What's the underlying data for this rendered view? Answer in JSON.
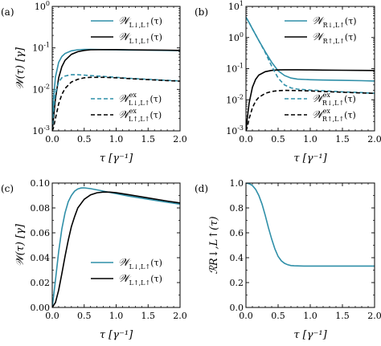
{
  "colors": {
    "teal": "#2f8fa8",
    "black": "#000000"
  },
  "chart_data": [
    {
      "panel": "(a)",
      "type": "line",
      "xlabel": "τ [γ⁻¹]",
      "ylabel": "𝒲(τ) [γ]",
      "xlim": [
        0,
        2.0
      ],
      "ylim": [
        0.001,
        1.0
      ],
      "yscale": "log",
      "xticks": [
        "0.0",
        "0.5",
        "1.0",
        "1.5",
        "2.0"
      ],
      "yticks": [
        "10⁻³",
        "10⁻²",
        "10⁻¹",
        "10⁰"
      ],
      "legend_top": "top-right",
      "legend_bottom": "bottom-right",
      "series": [
        {
          "name": "𝒲L↓,L↑(τ)",
          "color": "#2f8fa8",
          "dash": "solid",
          "legend": "top",
          "x": [
            0,
            0.02,
            0.05,
            0.1,
            0.15,
            0.2,
            0.3,
            0.4,
            0.5,
            0.6,
            0.8,
            1.0,
            1.2,
            1.5,
            1.8,
            2.0
          ],
          "y": [
            0.001,
            0.006,
            0.02,
            0.045,
            0.062,
            0.073,
            0.085,
            0.09,
            0.092,
            0.092,
            0.091,
            0.09,
            0.089,
            0.088,
            0.087,
            0.086
          ]
        },
        {
          "name": "𝒲L↑,L↑(τ)",
          "color": "#000000",
          "dash": "solid",
          "legend": "top",
          "x": [
            0,
            0.02,
            0.05,
            0.1,
            0.15,
            0.2,
            0.3,
            0.4,
            0.5,
            0.6,
            0.8,
            1.0,
            1.2,
            1.5,
            1.8,
            2.0
          ],
          "y": [
            0.001,
            0.002,
            0.006,
            0.019,
            0.035,
            0.05,
            0.07,
            0.081,
            0.087,
            0.09,
            0.091,
            0.091,
            0.09,
            0.089,
            0.088,
            0.087
          ]
        },
        {
          "name": "𝒲exL↓,L↑(τ)",
          "color": "#2f8fa8",
          "dash": "dashed",
          "legend": "bottom",
          "x": [
            0,
            0.02,
            0.05,
            0.1,
            0.15,
            0.2,
            0.3,
            0.4,
            0.5,
            0.6,
            0.8,
            1.0,
            1.2,
            1.5,
            1.8,
            2.0
          ],
          "y": [
            0.001,
            0.003,
            0.008,
            0.015,
            0.019,
            0.021,
            0.0225,
            0.0225,
            0.022,
            0.0215,
            0.0205,
            0.0195,
            0.0185,
            0.0175,
            0.0165,
            0.016
          ]
        },
        {
          "name": "𝒲exL↑,L↑(τ)",
          "color": "#000000",
          "dash": "dashed",
          "legend": "bottom",
          "x": [
            0,
            0.02,
            0.05,
            0.1,
            0.15,
            0.2,
            0.3,
            0.4,
            0.5,
            0.6,
            0.8,
            1.0,
            1.2,
            1.5,
            1.8,
            2.0
          ],
          "y": [
            0.001,
            0.0012,
            0.002,
            0.0045,
            0.0075,
            0.0105,
            0.015,
            0.0175,
            0.019,
            0.0195,
            0.0195,
            0.019,
            0.0182,
            0.0172,
            0.0163,
            0.0158
          ]
        }
      ]
    },
    {
      "panel": "(b)",
      "type": "line",
      "xlabel": "τ [γ⁻¹]",
      "ylabel": "",
      "xlim": [
        0,
        2.0
      ],
      "ylim": [
        0.001,
        10.0
      ],
      "yscale": "log",
      "xticks": [
        "0.0",
        "0.5",
        "1.0",
        "1.5",
        "2.0"
      ],
      "yticks": [
        "10⁻³",
        "10⁻²",
        "10⁻¹",
        "10⁰",
        "10¹"
      ],
      "legend_top": "top-right",
      "legend_bottom": "bottom-right",
      "series": [
        {
          "name": "𝒲R↓,L↑(τ)",
          "color": "#2f8fa8",
          "dash": "solid",
          "legend": "top",
          "x": [
            0,
            0.05,
            0.1,
            0.2,
            0.3,
            0.4,
            0.5,
            0.6,
            0.7,
            0.8,
            1.0,
            1.2,
            1.5,
            1.8,
            2.0
          ],
          "y": [
            4.5,
            3.0,
            1.9,
            0.8,
            0.35,
            0.16,
            0.085,
            0.06,
            0.05,
            0.046,
            0.044,
            0.043,
            0.042,
            0.041,
            0.04
          ]
        },
        {
          "name": "𝒲R↑,L↑(τ)",
          "color": "#000000",
          "dash": "solid",
          "legend": "top",
          "x": [
            0,
            0.02,
            0.05,
            0.1,
            0.15,
            0.2,
            0.3,
            0.4,
            0.5,
            0.6,
            0.8,
            1.0,
            1.2,
            1.5,
            1.8,
            2.0
          ],
          "y": [
            0.001,
            0.0025,
            0.008,
            0.025,
            0.045,
            0.062,
            0.08,
            0.088,
            0.091,
            0.092,
            0.092,
            0.091,
            0.09,
            0.089,
            0.088,
            0.087
          ]
        },
        {
          "name": "𝒲exR↓,L↑(τ)",
          "color": "#2f8fa8",
          "dash": "dashed",
          "legend": "bottom",
          "x": [
            0,
            0.05,
            0.1,
            0.2,
            0.3,
            0.4,
            0.5,
            0.6,
            0.7,
            0.8,
            1.0,
            1.2,
            1.5,
            1.8,
            2.0
          ],
          "y": [
            4.5,
            3.0,
            1.9,
            0.8,
            0.33,
            0.12,
            0.05,
            0.03,
            0.024,
            0.022,
            0.0205,
            0.0195,
            0.018,
            0.017,
            0.016
          ]
        },
        {
          "name": "𝒲exR↑,L↑(τ)",
          "color": "#000000",
          "dash": "dashed",
          "legend": "bottom",
          "x": [
            0,
            0.02,
            0.05,
            0.1,
            0.15,
            0.2,
            0.3,
            0.4,
            0.5,
            0.6,
            0.8,
            1.0,
            1.2,
            1.5,
            1.8,
            2.0
          ],
          "y": [
            0.001,
            0.0013,
            0.0025,
            0.0055,
            0.009,
            0.012,
            0.016,
            0.0185,
            0.0195,
            0.02,
            0.0198,
            0.0192,
            0.0184,
            0.0174,
            0.0165,
            0.016
          ]
        }
      ]
    },
    {
      "panel": "(c)",
      "type": "line",
      "xlabel": "τ [γ⁻¹]",
      "ylabel": "𝒲(τ) [γ]",
      "xlim": [
        0,
        2.0
      ],
      "ylim": [
        0,
        0.1
      ],
      "yscale": "linear",
      "xticks": [
        "0.0",
        "0.5",
        "1.0",
        "1.5",
        "2.0"
      ],
      "yticks": [
        "0.00",
        "0.02",
        "0.04",
        "0.06",
        "0.08",
        "0.10"
      ],
      "legend": "bottom-right",
      "series": [
        {
          "name": "𝒲L↓,L↑(τ)",
          "color": "#2f8fa8",
          "dash": "solid",
          "x": [
            0,
            0.05,
            0.1,
            0.15,
            0.2,
            0.25,
            0.3,
            0.35,
            0.4,
            0.45,
            0.5,
            0.6,
            0.7,
            0.8,
            1.0,
            1.2,
            1.5,
            1.8,
            2.0
          ],
          "y": [
            0,
            0.022,
            0.045,
            0.063,
            0.076,
            0.085,
            0.09,
            0.0935,
            0.0953,
            0.096,
            0.0961,
            0.0955,
            0.0945,
            0.0935,
            0.0915,
            0.0895,
            0.087,
            0.0845,
            0.083
          ]
        },
        {
          "name": "𝒲L↑,L↑(τ)",
          "color": "#000000",
          "dash": "solid",
          "x": [
            0,
            0.05,
            0.1,
            0.15,
            0.2,
            0.25,
            0.3,
            0.35,
            0.4,
            0.5,
            0.6,
            0.7,
            0.8,
            0.9,
            1.0,
            1.2,
            1.5,
            1.8,
            2.0
          ],
          "y": [
            0,
            0.004,
            0.014,
            0.027,
            0.041,
            0.054,
            0.065,
            0.073,
            0.08,
            0.087,
            0.0905,
            0.0922,
            0.0928,
            0.0927,
            0.0922,
            0.0906,
            0.088,
            0.0855,
            0.084
          ]
        }
      ]
    },
    {
      "panel": "(d)",
      "type": "line",
      "xlabel": "τ [γ⁻¹]",
      "ylabel": "ℛR↓,L↑(τ)",
      "xlim": [
        0,
        2.0
      ],
      "ylim": [
        0,
        1.0
      ],
      "yscale": "linear",
      "xticks": [
        "0.0",
        "0.5",
        "1.0",
        "1.5",
        "2.0"
      ],
      "yticks": [
        "0.0",
        "0.2",
        "0.4",
        "0.6",
        "0.8",
        "1.0"
      ],
      "series": [
        {
          "name": "",
          "color": "#2f8fa8",
          "dash": "solid",
          "x": [
            0,
            0.05,
            0.1,
            0.15,
            0.2,
            0.25,
            0.3,
            0.35,
            0.4,
            0.45,
            0.5,
            0.55,
            0.6,
            0.65,
            0.7,
            0.75,
            0.8,
            0.9,
            1.0,
            1.2,
            1.5,
            1.8,
            2.0
          ],
          "y": [
            1.0,
            0.995,
            0.98,
            0.95,
            0.9,
            0.83,
            0.74,
            0.64,
            0.55,
            0.47,
            0.41,
            0.375,
            0.355,
            0.343,
            0.337,
            0.335,
            0.334,
            0.333,
            0.333,
            0.333,
            0.333,
            0.333,
            0.333
          ]
        }
      ]
    }
  ]
}
